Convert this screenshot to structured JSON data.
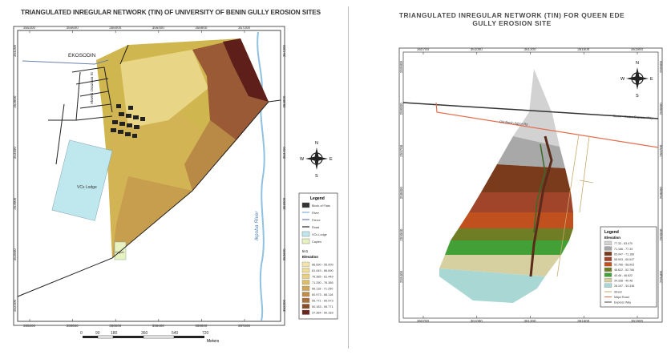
{
  "left_map": {
    "title": "TRIANGULATED INREGULAR NETWORK (TIN)  OF UNIVERSITY OF BENIN  GULLY EROSION SITES",
    "x_ticks": [
      "355200",
      "355600",
      "356000",
      "356400",
      "356800",
      "357200"
    ],
    "y_ticks": [
      "354200",
      "353800",
      "353400",
      "353000",
      "352600",
      "352200"
    ],
    "labels": {
      "place": "EKOSODIN",
      "road": "Akwesi Osazuwa St",
      "lodge": "VCs Lodge",
      "chapel": "Capel",
      "river": "Ikpoba River"
    },
    "scale": {
      "ticks": [
        "0",
        "90",
        "180",
        "360",
        "540",
        "720"
      ],
      "unit": "Meters"
    },
    "north_arrow": {
      "n": "N",
      "s": "S",
      "e": "E",
      "w": "W"
    },
    "legend": {
      "title": "Legend",
      "items": [
        {
          "label": "Block of Flats",
          "color": "#333333"
        },
        {
          "label": "River",
          "color": "#7fb2d9"
        },
        {
          "label": "Fence",
          "color": "#6a7fb0"
        },
        {
          "label": "Road",
          "color": "#222222"
        },
        {
          "label": "VCs Lodge",
          "color": "#bfe8ee"
        },
        {
          "label": "Caplen",
          "color": "#e8f2c0"
        }
      ],
      "tin_label": "tin1",
      "elevation_title": "Elevation",
      "elevation": [
        {
          "label": "86.690 - 95.009",
          "color": "#f3e5a8"
        },
        {
          "label": "81.449 - 86.690",
          "color": "#eedc94"
        },
        {
          "label": "76.385 - 81.449",
          "color": "#e8d080"
        },
        {
          "label": "71.250 - 76.385",
          "color": "#dcbd68"
        },
        {
          "label": "66.118 - 71.250",
          "color": "#cfa757"
        },
        {
          "label": "60.973 - 66.118",
          "color": "#bf8e48"
        },
        {
          "label": "55.771 - 60.973",
          "color": "#a8713a"
        },
        {
          "label": "50.183 - 55.771",
          "color": "#8a4d2c"
        },
        {
          "label": "37.384 - 50.183",
          "color": "#6c2620"
        }
      ]
    }
  },
  "right_map": {
    "title_line1": "TRIANGULATED INREGULAR NETWORK (TIN) FOR QUEEN EDE",
    "title_line2": "GULLY EROSION SITE",
    "x_ticks": [
      "360700",
      "361000",
      "361300",
      "361600",
      "361900"
    ],
    "y_ticks": [
      "259900",
      "259800",
      "259700",
      "259600",
      "259500",
      "259400"
    ],
    "road_labels": {
      "old_road": "Old Benin Agbor Rd",
      "expressway": "Benin - Asaba Express Way"
    },
    "north_arrow": {
      "n": "N",
      "s": "S",
      "e": "E",
      "w": "W"
    },
    "legend": {
      "title": "Legend",
      "elevation_title": "Elevation",
      "elevation": [
        {
          "label": "77.33 - 83.470",
          "color": "#d2d2d2"
        },
        {
          "label": "71.166 - 77.33",
          "color": "#a8a8a8"
        },
        {
          "label": "65.047 - 71.166",
          "color": "#7a3a1c"
        },
        {
          "label": "58.903 - 65.047",
          "color": "#a0442a"
        },
        {
          "label": "52.766 - 58.903",
          "color": "#c0501e"
        },
        {
          "label": "46.622 - 52.766",
          "color": "#6f7d25"
        },
        {
          "label": "40.48 - 46.622",
          "color": "#43a037"
        },
        {
          "label": "34.338 - 40.48",
          "color": "#d6d0a0"
        },
        {
          "label": "28.197 - 34.338",
          "color": "#a9d8d4"
        }
      ],
      "lines": [
        {
          "label": "Street",
          "color": "#c9a86a"
        },
        {
          "label": "Major Road",
          "color": "#e56d4f"
        },
        {
          "label": "Express Way",
          "color": "#444444"
        }
      ]
    }
  }
}
